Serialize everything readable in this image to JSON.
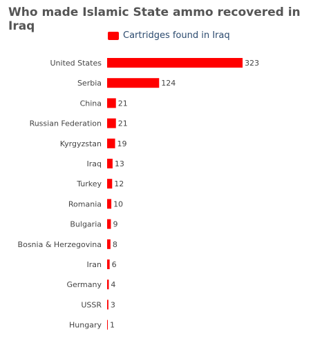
{
  "chart_data": {
    "type": "bar",
    "orientation": "horizontal",
    "title": "Who made Islamic State ammo recovered in Iraq",
    "legend_position": "top",
    "color": "#ff0000",
    "categories": [
      "United States",
      "Serbia",
      "China",
      "Russian Federation",
      "Kyrgyzstan",
      "Iraq",
      "Turkey",
      "Romania",
      "Bulgaria",
      "Bosnia & Herzegovina",
      "Iran",
      "Germany",
      "USSR",
      "Hungary"
    ],
    "series": [
      {
        "name": "Cartridges found in Iraq",
        "values": [
          323,
          124,
          21,
          21,
          19,
          13,
          12,
          10,
          9,
          8,
          6,
          4,
          3,
          1
        ]
      }
    ],
    "grid": false
  }
}
